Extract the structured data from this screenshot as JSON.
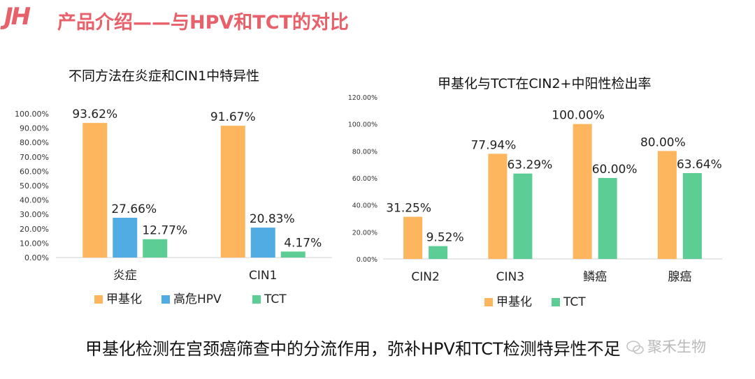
{
  "header": {
    "logo": "JH",
    "title": "产品介绍——与HPV和TCT的对比"
  },
  "footer": {
    "conclusion": "甲基化检测在宫颈癌筛查中的分流作用，弥补HPV和TCT检测特异性不足",
    "watermark": "聚禾生物"
  },
  "colors": {
    "methylation": "#fdb55e",
    "hpv": "#52ace4",
    "tct": "#5ccd94",
    "brand": "#e8616a"
  },
  "chart_data": [
    {
      "type": "bar",
      "title": "不同方法在炎症和CIN1中特异性",
      "categories": [
        "炎症",
        "CIN1"
      ],
      "series": [
        {
          "name": "甲基化",
          "values": [
            93.62,
            91.67
          ],
          "labels": [
            "93.62%",
            "91.67%"
          ]
        },
        {
          "name": "高危HPV",
          "values": [
            27.66,
            20.83
          ],
          "labels": [
            "27.66%",
            "20.83%"
          ]
        },
        {
          "name": "TCT",
          "values": [
            12.77,
            4.17
          ],
          "labels": [
            "12.77%",
            "4.17%"
          ]
        }
      ],
      "ylim": [
        0,
        100
      ],
      "yticks": [
        "0.00%",
        "10.00%",
        "20.00%",
        "30.00%",
        "40.00%",
        "50.00%",
        "60.00%",
        "70.00%",
        "80.00%",
        "90.00%",
        "100.00%"
      ],
      "grid": false,
      "legend_position": "bottom"
    },
    {
      "type": "bar",
      "title": "甲基化与TCT在CIN2+中阳性检出率",
      "categories": [
        "CIN2",
        "CIN3",
        "鳞癌",
        "腺癌"
      ],
      "series": [
        {
          "name": "甲基化",
          "values": [
            31.25,
            77.94,
            100.0,
            80.0
          ],
          "labels": [
            "31.25%",
            "77.94%",
            "100.00%",
            "80.00%"
          ]
        },
        {
          "name": "TCT",
          "values": [
            9.52,
            63.29,
            60.0,
            63.64
          ],
          "labels": [
            "9.52%",
            "63.29%",
            "60.00%",
            "63.64%"
          ]
        }
      ],
      "ylim": [
        0,
        120
      ],
      "yticks": [
        "0.00%",
        "20.00%",
        "40.00%",
        "60.00%",
        "80.00%",
        "100.00%",
        "120.00%"
      ],
      "grid": false,
      "legend_position": "bottom"
    }
  ]
}
